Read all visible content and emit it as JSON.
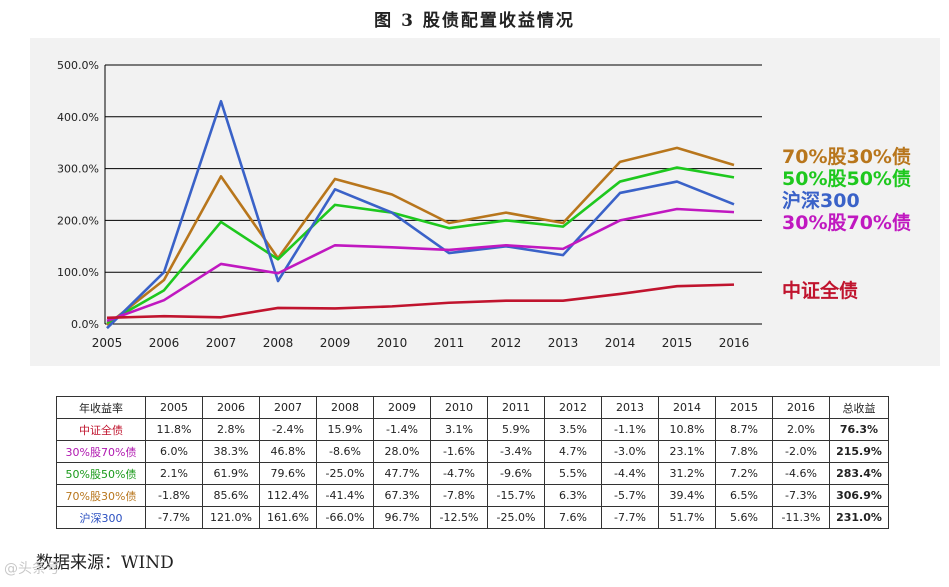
{
  "title": "图 3   股债配置收益情况",
  "chart_data": {
    "type": "line",
    "title": "图 3   股债配置收益情况",
    "categories": [
      "2005",
      "2006",
      "2007",
      "2008",
      "2009",
      "2010",
      "2011",
      "2012",
      "2013",
      "2014",
      "2015",
      "2016"
    ],
    "ylim": [
      0,
      500
    ],
    "yticks": [
      "0.0%",
      "100.0%",
      "200.0%",
      "300.0%",
      "400.0%",
      "500.0%"
    ],
    "grid": true,
    "legend_position": "right",
    "series": [
      {
        "name": "70%股30%债",
        "color": "#b8761c",
        "values": [
          -2,
          85,
          285,
          127,
          280,
          250,
          195,
          215,
          195,
          313,
          340,
          307
        ]
      },
      {
        "name": "50%股50%债",
        "color": "#1ec81e",
        "values": [
          2,
          65,
          197,
          125,
          230,
          215,
          185,
          200,
          188,
          275,
          302,
          283
        ]
      },
      {
        "name": "沪深300",
        "color": "#3a62c8",
        "values": [
          -8,
          100,
          430,
          83,
          260,
          215,
          137,
          150,
          133,
          253,
          275,
          231
        ]
      },
      {
        "name": "30%股70%债",
        "color": "#c018c0",
        "values": [
          6,
          46,
          116,
          98,
          152,
          148,
          143,
          152,
          145,
          200,
          222,
          216
        ]
      },
      {
        "name": "中证全债",
        "color": "#c0142e",
        "values": [
          12,
          15,
          13,
          31,
          30,
          34,
          41,
          45,
          45,
          58,
          73,
          76
        ]
      }
    ]
  },
  "table": {
    "header_label": "年收益率",
    "years": [
      "2005",
      "2006",
      "2007",
      "2008",
      "2009",
      "2010",
      "2011",
      "2012",
      "2013",
      "2014",
      "2015",
      "2016"
    ],
    "total_label": "总收益",
    "rows": [
      {
        "name": "中证全债",
        "color": "#c0142e",
        "values": [
          "11.8%",
          "2.8%",
          "-2.4%",
          "15.9%",
          "-1.4%",
          "3.1%",
          "5.9%",
          "3.5%",
          "-1.1%",
          "10.8%",
          "8.7%",
          "2.0%"
        ],
        "total": "76.3%"
      },
      {
        "name": "30%股70%债",
        "color": "#b018b0",
        "values": [
          "6.0%",
          "38.3%",
          "46.8%",
          "-8.6%",
          "28.0%",
          "-1.6%",
          "-3.4%",
          "4.7%",
          "-3.0%",
          "23.1%",
          "7.8%",
          "-2.0%"
        ],
        "total": "215.9%"
      },
      {
        "name": "50%股50%债",
        "color": "#1a9a1a",
        "values": [
          "2.1%",
          "61.9%",
          "79.6%",
          "-25.0%",
          "47.7%",
          "-4.7%",
          "-9.6%",
          "5.5%",
          "-4.4%",
          "31.2%",
          "7.2%",
          "-4.6%"
        ],
        "total": "283.4%"
      },
      {
        "name": "70%股30%债",
        "color": "#b8761c",
        "values": [
          "-1.8%",
          "85.6%",
          "112.4%",
          "-41.4%",
          "67.3%",
          "-7.8%",
          "-15.7%",
          "6.3%",
          "-5.7%",
          "39.4%",
          "6.5%",
          "-7.3%"
        ],
        "total": "306.9%"
      },
      {
        "name": "沪深300",
        "color": "#2a4fc0",
        "values": [
          "-7.7%",
          "121.0%",
          "161.6%",
          "-66.0%",
          "96.7%",
          "-12.5%",
          "-25.0%",
          "7.6%",
          "-7.7%",
          "51.7%",
          "5.6%",
          "-11.3%"
        ],
        "total": "231.0%"
      }
    ]
  },
  "source": "数据来源：WIND",
  "watermark": "@头条号"
}
